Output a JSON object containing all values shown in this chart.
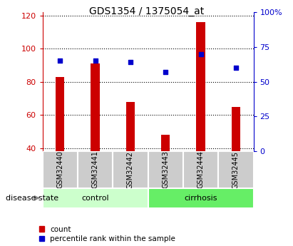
{
  "title": "GDS1354 / 1375054_at",
  "samples": [
    "GSM32440",
    "GSM32441",
    "GSM32442",
    "GSM32443",
    "GSM32444",
    "GSM32445"
  ],
  "counts": [
    83,
    91,
    68,
    48,
    116,
    65
  ],
  "percentile_ranks": [
    65,
    65,
    64,
    57,
    70,
    60
  ],
  "ylim_left": [
    38,
    122
  ],
  "ylim_right": [
    0,
    100
  ],
  "yticks_left": [
    40,
    60,
    80,
    100,
    120
  ],
  "yticks_right": [
    0,
    25,
    50,
    75,
    100
  ],
  "ytick_labels_right": [
    "0",
    "25",
    "50",
    "75",
    "100%"
  ],
  "bar_color": "#cc0000",
  "dot_color": "#0000cc",
  "n_control": 3,
  "n_cirrhosis": 3,
  "control_label": "control",
  "cirrhosis_label": "cirrhosis",
  "disease_state_label": "disease state",
  "legend_count_label": "count",
  "legend_pct_label": "percentile rank within the sample",
  "control_bg": "#ccffcc",
  "cirrhosis_bg": "#66ee66",
  "tick_label_bg": "#cccccc",
  "left_tick_color": "#cc0000",
  "right_tick_color": "#0000cc",
  "bar_width": 0.25,
  "dot_size": 25
}
